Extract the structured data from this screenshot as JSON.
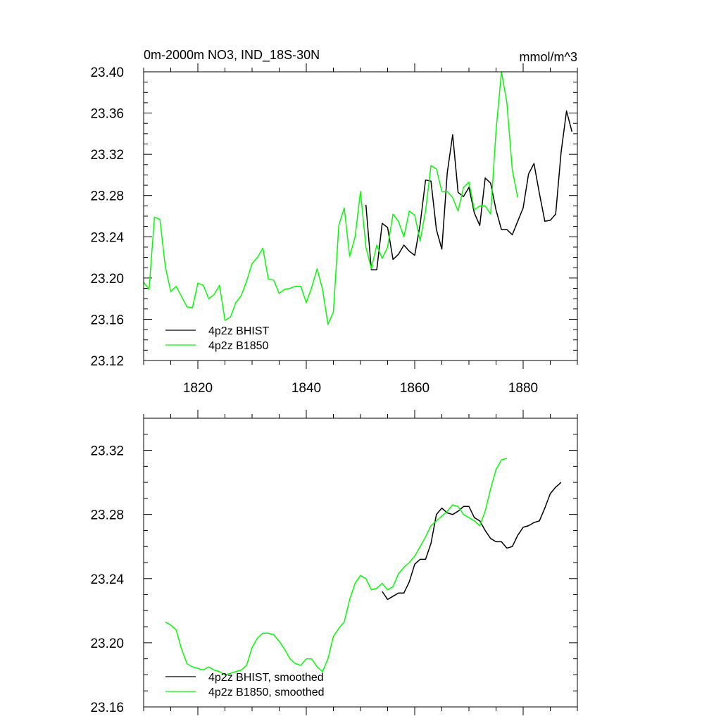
{
  "colors": {
    "background": "#ffffff",
    "axes": "#000000"
  },
  "chart_data": [
    {
      "type": "line",
      "title": "0m-2000m NO3, IND_18S-30N",
      "units": "mmol/m^3",
      "xlabel": "",
      "ylabel": "",
      "xlim": [
        1810,
        1890
      ],
      "ylim": [
        23.12,
        23.4
      ],
      "xticks": [
        1820,
        1840,
        1860,
        1880
      ],
      "xtick_labels": [
        "1820",
        "1840",
        "1860",
        "1880"
      ],
      "yticks": [
        23.12,
        23.16,
        23.2,
        23.24,
        23.28,
        23.32,
        23.36,
        23.4
      ],
      "ytick_labels": [
        "23.12",
        "23.16",
        "23.20",
        "23.24",
        "23.28",
        "23.32",
        "23.36",
        "23.40"
      ],
      "grid": false,
      "legend_position": "bottom-left",
      "series": [
        {
          "name": "4p2z BHIST",
          "color": "#000000",
          "x": [
            1851,
            1852,
            1853,
            1854,
            1855,
            1856,
            1857,
            1858,
            1859,
            1860,
            1861,
            1862,
            1863,
            1864,
            1865,
            1866,
            1867,
            1868,
            1869,
            1870,
            1871,
            1872,
            1873,
            1874,
            1875,
            1876,
            1877,
            1878,
            1879,
            1880,
            1881,
            1882,
            1883,
            1884,
            1885,
            1886,
            1887,
            1888,
            1889
          ],
          "values": [
            23.271,
            23.208,
            23.208,
            23.253,
            23.249,
            23.218,
            23.223,
            23.232,
            23.226,
            23.222,
            23.252,
            23.295,
            23.294,
            23.247,
            23.228,
            23.302,
            23.339,
            23.283,
            23.279,
            23.288,
            23.263,
            23.251,
            23.297,
            23.292,
            23.266,
            23.247,
            23.247,
            23.242,
            23.255,
            23.268,
            23.301,
            23.311,
            23.282,
            23.255,
            23.256,
            23.262,
            23.322,
            23.362,
            23.342
          ]
        },
        {
          "name": "4p2z B1850",
          "color": "#00ff00",
          "x": [
            1810,
            1811,
            1812,
            1813,
            1814,
            1815,
            1816,
            1817,
            1818,
            1819,
            1820,
            1821,
            1822,
            1823,
            1824,
            1825,
            1826,
            1827,
            1828,
            1829,
            1830,
            1831,
            1832,
            1833,
            1834,
            1835,
            1836,
            1837,
            1838,
            1839,
            1840,
            1841,
            1842,
            1843,
            1844,
            1845,
            1846,
            1847,
            1848,
            1849,
            1850,
            1851,
            1852,
            1853,
            1854,
            1855,
            1856,
            1857,
            1858,
            1859,
            1860,
            1861,
            1862,
            1863,
            1864,
            1865,
            1866,
            1867,
            1868,
            1869,
            1870,
            1871,
            1872,
            1873,
            1874,
            1875,
            1876,
            1877,
            1878,
            1879
          ],
          "values": [
            23.196,
            23.189,
            23.259,
            23.257,
            23.211,
            23.187,
            23.192,
            23.182,
            23.172,
            23.171,
            23.195,
            23.193,
            23.18,
            23.184,
            23.193,
            23.159,
            23.162,
            23.176,
            23.183,
            23.197,
            23.214,
            23.22,
            23.229,
            23.199,
            23.198,
            23.185,
            23.189,
            23.19,
            23.192,
            23.192,
            23.176,
            23.191,
            23.209,
            23.189,
            23.155,
            23.167,
            23.251,
            23.268,
            23.221,
            23.24,
            23.284,
            23.23,
            23.209,
            23.232,
            23.219,
            23.23,
            23.262,
            23.255,
            23.24,
            23.265,
            23.261,
            23.236,
            23.265,
            23.309,
            23.306,
            23.284,
            23.284,
            23.278,
            23.265,
            23.288,
            23.293,
            23.266,
            23.27,
            23.27,
            23.262,
            23.343,
            23.4,
            23.37,
            23.305,
            23.278
          ]
        }
      ]
    },
    {
      "type": "line",
      "title": "",
      "xlabel": "",
      "ylabel": "",
      "xlim": [
        1810,
        1890
      ],
      "ylim": [
        23.16,
        23.34
      ],
      "xticks": [
        1820,
        1840,
        1860,
        1880
      ],
      "yticks": [
        23.16,
        23.2,
        23.24,
        23.28,
        23.32
      ],
      "ytick_labels": [
        "23.16",
        "23.20",
        "23.24",
        "23.28",
        "23.32"
      ],
      "grid": false,
      "legend_position": "bottom-left",
      "series": [
        {
          "name": "4p2z BHIST, smoothed",
          "color": "#000000",
          "x": [
            1854,
            1855,
            1856,
            1857,
            1858,
            1859,
            1860,
            1861,
            1862,
            1863,
            1864,
            1865,
            1866,
            1867,
            1868,
            1869,
            1870,
            1871,
            1872,
            1873,
            1874,
            1875,
            1876,
            1877,
            1878,
            1879,
            1880,
            1881,
            1882,
            1883,
            1884,
            1885,
            1886,
            1887
          ],
          "values": [
            23.232,
            23.227,
            23.229,
            23.231,
            23.231,
            23.238,
            23.249,
            23.252,
            23.252,
            23.262,
            23.28,
            23.284,
            23.281,
            23.28,
            23.282,
            23.285,
            23.285,
            23.278,
            23.276,
            23.27,
            23.265,
            23.263,
            23.263,
            23.259,
            23.26,
            23.267,
            23.272,
            23.273,
            23.275,
            23.276,
            23.284,
            23.293,
            23.297,
            23.3
          ]
        },
        {
          "name": "4p2z B1850, smoothed",
          "color": "#00ff00",
          "x": [
            1814,
            1815,
            1816,
            1817,
            1818,
            1819,
            1820,
            1821,
            1822,
            1823,
            1824,
            1825,
            1826,
            1827,
            1828,
            1829,
            1830,
            1831,
            1832,
            1833,
            1834,
            1835,
            1836,
            1837,
            1838,
            1839,
            1840,
            1841,
            1842,
            1843,
            1844,
            1845,
            1846,
            1847,
            1848,
            1849,
            1850,
            1851,
            1852,
            1853,
            1854,
            1855,
            1856,
            1857,
            1858,
            1859,
            1860,
            1861,
            1862,
            1863,
            1864,
            1865,
            1866,
            1867,
            1868,
            1869,
            1870,
            1871,
            1872,
            1873,
            1874,
            1875,
            1876,
            1877
          ],
          "values": [
            23.213,
            23.211,
            23.208,
            23.196,
            23.187,
            23.185,
            23.184,
            23.183,
            23.185,
            23.183,
            23.182,
            23.18,
            23.181,
            23.182,
            23.183,
            23.186,
            23.197,
            23.203,
            23.206,
            23.206,
            23.205,
            23.201,
            23.196,
            23.19,
            23.187,
            23.186,
            23.19,
            23.19,
            23.185,
            23.182,
            23.19,
            23.204,
            23.209,
            23.213,
            23.227,
            23.237,
            23.242,
            23.24,
            23.233,
            23.234,
            23.237,
            23.233,
            23.235,
            23.243,
            23.247,
            23.25,
            23.254,
            23.26,
            23.266,
            23.273,
            23.276,
            23.279,
            23.282,
            23.286,
            23.285,
            23.28,
            23.278,
            23.276,
            23.273,
            23.282,
            23.296,
            23.308,
            23.314,
            23.315
          ]
        }
      ]
    }
  ]
}
